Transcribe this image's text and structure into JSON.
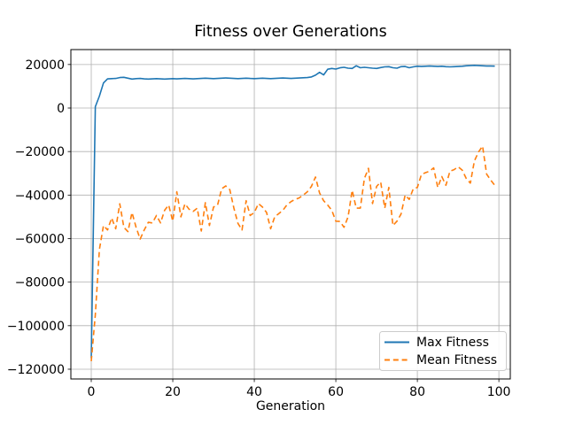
{
  "chart_data": {
    "type": "line",
    "title": "Fitness over Generations",
    "xlabel": "Generation",
    "ylabel": "",
    "grid": true,
    "grid_color": "#b0b0b0",
    "background": "#ffffff",
    "legend_position": "lower right",
    "xlim": [
      -5,
      102.8
    ],
    "ylim": [
      -124480,
      26850
    ],
    "xticks": [
      0,
      20,
      40,
      60,
      80,
      100
    ],
    "xtick_labels": [
      "0",
      "20",
      "40",
      "60",
      "80",
      "100"
    ],
    "yticks": [
      -120000,
      -100000,
      -80000,
      -60000,
      -40000,
      -20000,
      0,
      20000
    ],
    "ytick_labels": [
      "−120000",
      "−100000",
      "−80000",
      "−60000",
      "−40000",
      "−20000",
      "0",
      "20000"
    ],
    "x": [
      0,
      1,
      2,
      3,
      4,
      5,
      6,
      7,
      8,
      9,
      10,
      11,
      12,
      13,
      14,
      15,
      16,
      17,
      18,
      19,
      20,
      21,
      22,
      23,
      24,
      25,
      26,
      27,
      28,
      29,
      30,
      31,
      32,
      33,
      34,
      35,
      36,
      37,
      38,
      39,
      40,
      41,
      42,
      43,
      44,
      45,
      46,
      47,
      48,
      49,
      50,
      51,
      52,
      53,
      54,
      55,
      56,
      57,
      58,
      59,
      60,
      61,
      62,
      63,
      64,
      65,
      66,
      67,
      68,
      69,
      70,
      71,
      72,
      73,
      74,
      75,
      76,
      77,
      78,
      79,
      80,
      81,
      82,
      83,
      84,
      85,
      86,
      87,
      88,
      89,
      90,
      91,
      92,
      93,
      94,
      95,
      96,
      97,
      98,
      99
    ],
    "series": [
      {
        "name": "Max Fitness",
        "color": "#1f77b4",
        "style": "solid",
        "values": [
          -115000,
          600,
          5500,
          11500,
          13400,
          13500,
          13600,
          14000,
          14100,
          13700,
          13300,
          13500,
          13600,
          13400,
          13300,
          13400,
          13500,
          13400,
          13300,
          13400,
          13500,
          13400,
          13500,
          13600,
          13500,
          13400,
          13500,
          13600,
          13700,
          13600,
          13500,
          13600,
          13700,
          13800,
          13700,
          13600,
          13500,
          13600,
          13700,
          13600,
          13500,
          13600,
          13700,
          13600,
          13500,
          13600,
          13700,
          13800,
          13700,
          13600,
          13700,
          13800,
          13900,
          14000,
          14300,
          15100,
          16400,
          15200,
          17800,
          18200,
          17900,
          18450,
          18700,
          18300,
          18200,
          19400,
          18500,
          18700,
          18500,
          18300,
          18200,
          18600,
          18900,
          19000,
          18500,
          18300,
          19000,
          19100,
          18500,
          18900,
          19200,
          19100,
          19200,
          19300,
          19200,
          19100,
          19200,
          19000,
          18900,
          19000,
          19100,
          19200,
          19400,
          19500,
          19600,
          19500,
          19400,
          19300,
          19300,
          19250
        ]
      },
      {
        "name": "Mean Fitness",
        "color": "#ff7f0e",
        "style": "dashed",
        "values": [
          -116300,
          -95000,
          -65000,
          -54000,
          -56000,
          -50500,
          -55500,
          -44000,
          -54800,
          -56800,
          -48000,
          -54800,
          -60200,
          -56000,
          -52500,
          -52800,
          -49400,
          -52800,
          -47000,
          -44600,
          -52000,
          -38500,
          -50000,
          -44000,
          -46500,
          -47500,
          -46000,
          -56500,
          -43500,
          -54000,
          -45500,
          -44600,
          -37100,
          -35800,
          -37500,
          -46000,
          -53000,
          -56000,
          -42600,
          -49400,
          -48000,
          -43900,
          -45500,
          -48000,
          -55500,
          -50000,
          -48500,
          -47000,
          -44500,
          -43000,
          -42000,
          -41300,
          -40000,
          -38500,
          -36000,
          -31700,
          -39000,
          -42600,
          -44600,
          -47000,
          -52000,
          -52100,
          -54800,
          -50000,
          -37800,
          -46000,
          -46000,
          -32400,
          -27700,
          -43900,
          -36000,
          -34000,
          -46000,
          -36500,
          -54000,
          -52000,
          -48700,
          -40000,
          -42000,
          -37100,
          -36500,
          -30500,
          -29700,
          -29000,
          -27500,
          -36500,
          -31500,
          -35500,
          -29000,
          -28300,
          -27000,
          -28500,
          -32400,
          -34500,
          -24300,
          -20200,
          -17500,
          -30400,
          -33100,
          -35500
        ]
      }
    ]
  }
}
